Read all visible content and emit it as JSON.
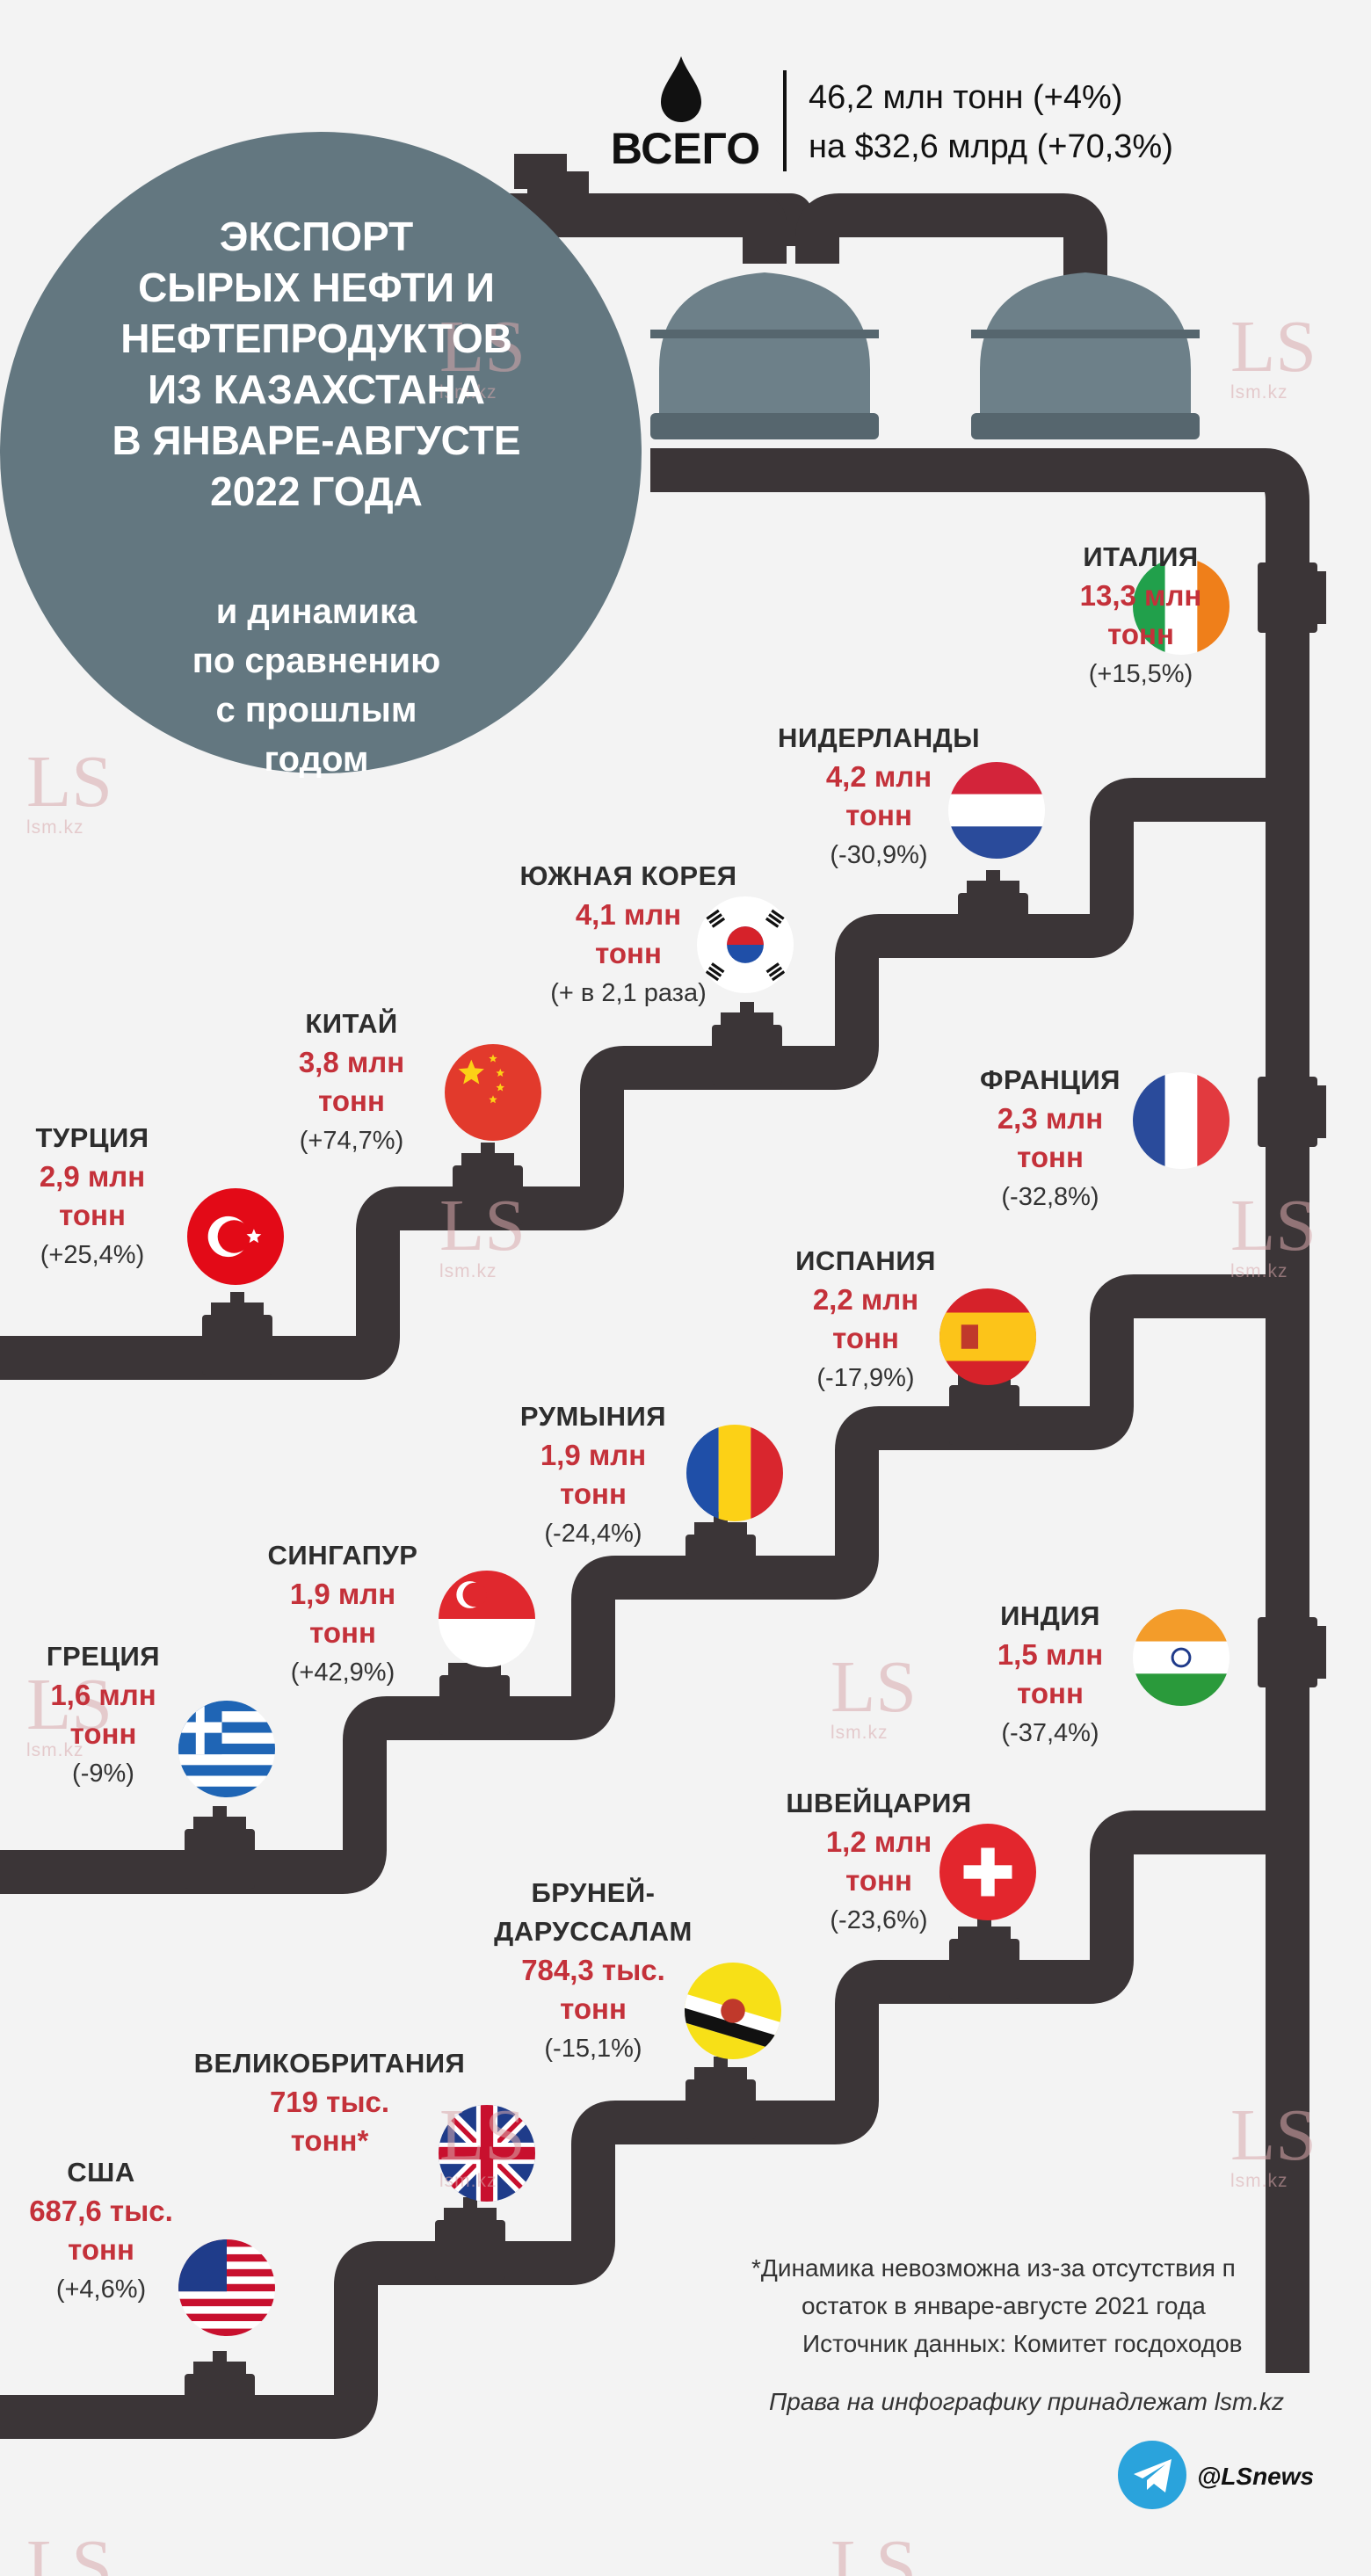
{
  "header": {
    "total_label": "ВСЕГО",
    "line1": "46,2 млн тонн (+4%)",
    "line2": "на $32,6 млрд (+70,3%)",
    "icon": "oil-drop-icon"
  },
  "title": {
    "lines": [
      "ЭКСПОРТ",
      "СЫРЫХ НЕФТИ И",
      "НЕФТЕПРОДУКТОВ",
      "ИЗ КАЗАХСТАНА",
      "В ЯНВАРЕ-АВГУСТЕ",
      "2022 ГОДА"
    ],
    "sub_lines": [
      "и динамика",
      "по сравнению",
      "с прошлым",
      "годом"
    ]
  },
  "countries": [
    {
      "name": "ИТАЛИЯ",
      "amount": [
        "13,3 млн",
        "тонн"
      ],
      "change": "(+15,5%)",
      "flag": "italy"
    },
    {
      "name": "НИДЕРЛАНДЫ",
      "amount": [
        "4,2 млн",
        "тонн"
      ],
      "change": "(-30,9%)",
      "flag": "netherlands"
    },
    {
      "name": "ЮЖНАЯ КОРЕЯ",
      "amount": [
        "4,1 млн",
        "тонн"
      ],
      "change": "(+ в 2,1 раза)",
      "flag": "south-korea"
    },
    {
      "name": "КИТАЙ",
      "amount": [
        "3,8 млн",
        "тонн"
      ],
      "change": "(+74,7%)",
      "flag": "china"
    },
    {
      "name": "ТУРЦИЯ",
      "amount": [
        "2,9 млн",
        "тонн"
      ],
      "change": "(+25,4%)",
      "flag": "turkey"
    },
    {
      "name": "ФРАНЦИЯ",
      "amount": [
        "2,3 млн",
        "тонн"
      ],
      "change": "(-32,8%)",
      "flag": "france"
    },
    {
      "name": "ИСПАНИЯ",
      "amount": [
        "2,2 млн",
        "тонн"
      ],
      "change": "(-17,9%)",
      "flag": "spain"
    },
    {
      "name": "РУМЫНИЯ",
      "amount": [
        "1,9 млн",
        "тонн"
      ],
      "change": "(-24,4%)",
      "flag": "romania"
    },
    {
      "name": "СИНГАПУР",
      "amount": [
        "1,9 млн",
        "тонн"
      ],
      "change": "(+42,9%)",
      "flag": "singapore"
    },
    {
      "name": "ГРЕЦИЯ",
      "amount": [
        "1,6 млн",
        "тонн"
      ],
      "change": "(-9%)",
      "flag": "greece"
    },
    {
      "name": "ИНДИЯ",
      "amount": [
        "1,5 млн",
        "тонн"
      ],
      "change": "(-37,4%)",
      "flag": "india"
    },
    {
      "name": "ШВЕЙЦАРИЯ",
      "amount": [
        "1,2 млн",
        "тонн"
      ],
      "change": "(-23,6%)",
      "flag": "switzerland"
    },
    {
      "name": "БРУНЕЙ-ДАРУССАЛАМ",
      "name_lines": [
        "БРУНЕЙ-",
        "ДАРУССАЛАМ"
      ],
      "amount": [
        "784,3 тыс.",
        "тонн"
      ],
      "change": "(-15,1%)",
      "flag": "brunei"
    },
    {
      "name": "ВЕЛИКОБРИТАНИЯ",
      "amount": [
        "719 тыс.",
        "тонн*"
      ],
      "change": "",
      "flag": "united-kingdom"
    },
    {
      "name": "США",
      "amount": [
        "687,6 тыс.",
        "тонн"
      ],
      "change": "(+4,6%)",
      "flag": "usa"
    }
  ],
  "footer": {
    "note_line1": "*Динамика невозможна из-за отсутствия п",
    "note_line2": "остаток в январе-августе 2021 года",
    "source": "Источник данных: Комитет госдоходов",
    "rights": "Права на инфографику принадлежат lsm.kz",
    "telegram": "@LSnews",
    "telegram_icon": "telegram-icon"
  },
  "watermark": {
    "logo": "LS",
    "site": "lsm.kz"
  },
  "colors": {
    "background": "#f3f3f3",
    "pipe": "#3b3537",
    "title_circle": "#637780",
    "tank": "#6d8089",
    "amount_red": "#c4313a",
    "telegram": "#2aa3dc"
  }
}
